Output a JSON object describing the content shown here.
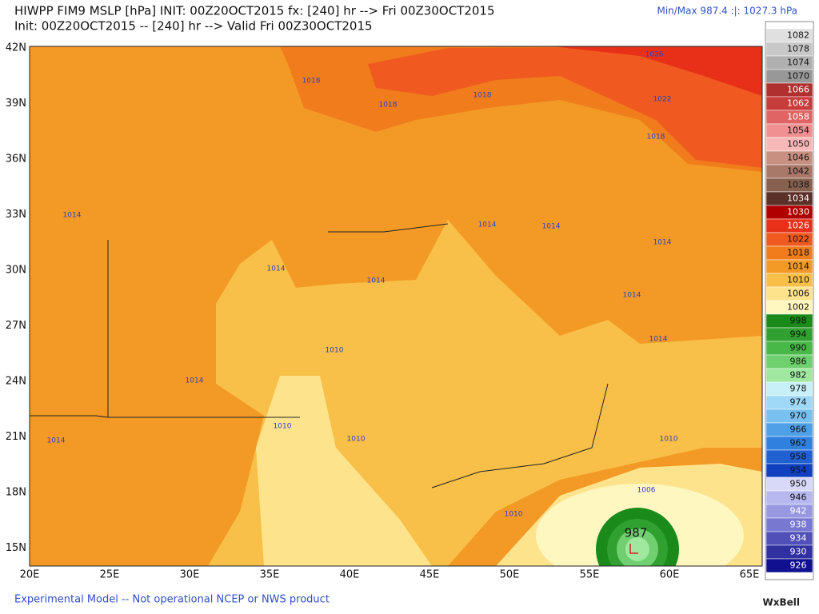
{
  "header": {
    "line1": "HIWPP FIM9 MSLP [hPa] INIT: 00Z20OCT2015 fx: [240] hr --> Fri 00Z30OCT2015",
    "line2": "Init: 00Z20OCT2015 -- [240] hr --> Valid Fri 00Z30OCT2015",
    "minmax": "Min/Max 987.4 :|: 1027.3 hPa"
  },
  "map": {
    "lat_labels": [
      "42N",
      "39N",
      "36N",
      "33N",
      "30N",
      "27N",
      "24N",
      "21N",
      "18N",
      "15N"
    ],
    "lon_labels": [
      "20E",
      "25E",
      "30E",
      "35E",
      "40E",
      "45E",
      "50E",
      "55E",
      "60E",
      "65E"
    ],
    "contour_labels": [
      "1026",
      "1018",
      "1018",
      "1018",
      "1022",
      "1018",
      "1014",
      "1014",
      "1014",
      "1014",
      "1014",
      "1014",
      "1014",
      "1014",
      "1010",
      "1014",
      "1010",
      "1010",
      "1014",
      "1010",
      "1006",
      "1010"
    ],
    "low_center": "987"
  },
  "colorbar": {
    "labels": [
      "1082",
      "1078",
      "1074",
      "1070",
      "1066",
      "1062",
      "1058",
      "1054",
      "1050",
      "1046",
      "1042",
      "1038",
      "1034",
      "1030",
      "1026",
      "1022",
      "1018",
      "1014",
      "1010",
      "1006",
      "1002",
      "998",
      "994",
      "990",
      "986",
      "982",
      "978",
      "974",
      "970",
      "966",
      "962",
      "958",
      "954",
      "950",
      "946",
      "942",
      "938",
      "934",
      "930",
      "926"
    ],
    "colors": [
      "#e0e0e0",
      "#c8c8c8",
      "#b0b0b0",
      "#989898",
      "#b03030",
      "#c83c3c",
      "#e06464",
      "#f09090",
      "#f8b8b8",
      "#c89080",
      "#a87868",
      "#886050",
      "#5a3028",
      "#b00000",
      "#e83018",
      "#f05a20",
      "#f07c1c",
      "#f39a26",
      "#f8c048",
      "#fde38c",
      "#fff6c0",
      "#1a8a1a",
      "#30a030",
      "#48b848",
      "#70d070",
      "#a0e8a0",
      "#c8f0f8",
      "#a0d8f8",
      "#78c0f0",
      "#50a0e8",
      "#3080e0",
      "#2060d0",
      "#1040c0",
      "#d8d8f8",
      "#b8b8f0",
      "#9898e0",
      "#7878d0",
      "#5050b8",
      "#3030a0",
      "#101090"
    ]
  },
  "footer": {
    "disclaimer": "Experimental Model -- Not operational NCEP or NWS product",
    "brand": "WxBell"
  }
}
